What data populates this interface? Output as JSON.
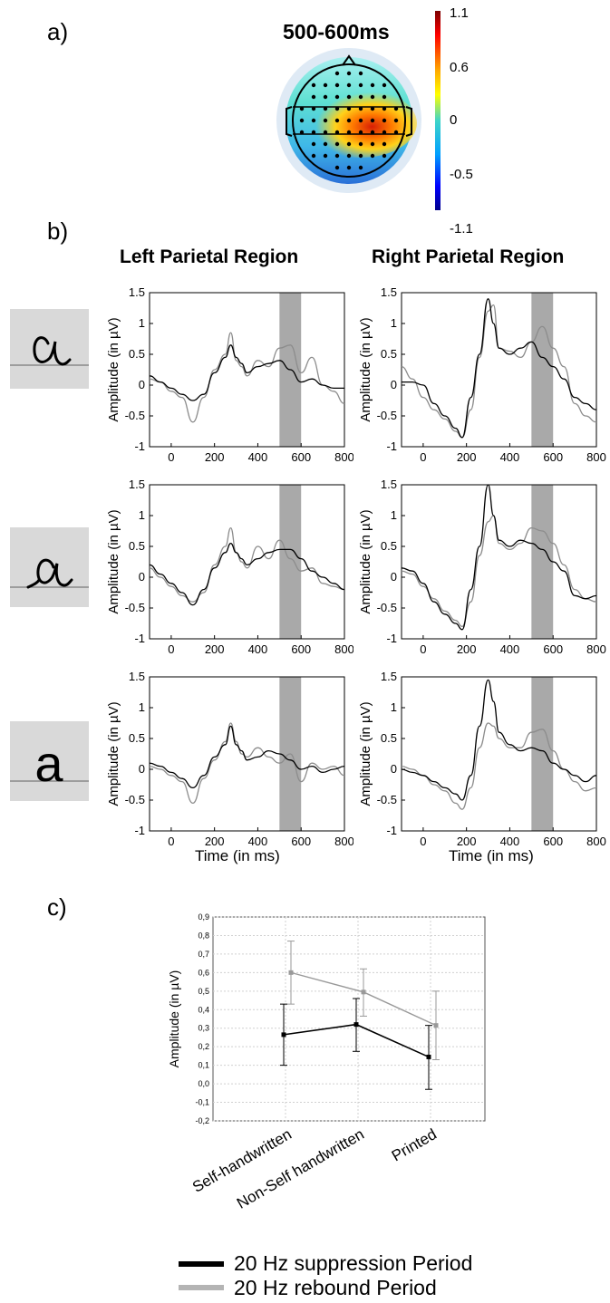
{
  "panel_labels": {
    "a": "a)",
    "b": "b)",
    "c": "c)"
  },
  "topomap": {
    "title": "500-600ms",
    "colorbar_ticks": [
      "1.1",
      "0.6",
      "0",
      "-0.5",
      "-1.1"
    ],
    "colors": {
      "high": "#8b0000",
      "zero": "#3fd5c8",
      "low": "#00008b"
    }
  },
  "region_titles": [
    "Left Parietal Region",
    "Right Parietal Region"
  ],
  "letters": [
    "self-handwritten letter a",
    "non-self handwritten letter a",
    "printed letter a"
  ],
  "erp_axis": {
    "ylabel": "Amplitude (in µV)",
    "xlabel": "Time (in ms)",
    "yticks": [
      "1.5",
      "1",
      "0.5",
      "0",
      "-0.5",
      "-1"
    ],
    "xticks": [
      "0",
      "200",
      "400",
      "600",
      "800"
    ]
  },
  "chart_data": [
    {
      "type": "line",
      "panel": "b",
      "row": 1,
      "region": "Left Parietal Region",
      "xlim": [
        -100,
        800
      ],
      "ylim": [
        -1,
        1.5
      ],
      "shaded_x": [
        500,
        600
      ],
      "series": [
        {
          "color": "#000000",
          "x": [
            -100,
            -50,
            0,
            50,
            100,
            150,
            200,
            250,
            275,
            300,
            325,
            350,
            400,
            450,
            500,
            550,
            600,
            650,
            700,
            750,
            800
          ],
          "y": [
            0.15,
            0.05,
            -0.05,
            -0.15,
            -0.25,
            -0.15,
            0.2,
            0.45,
            0.65,
            0.45,
            0.35,
            0.2,
            0.3,
            0.35,
            0.4,
            0.25,
            0.05,
            0.1,
            0,
            -0.05,
            -0.05
          ]
        },
        {
          "color": "#8c8c8c",
          "x": [
            -100,
            -50,
            0,
            50,
            100,
            150,
            200,
            250,
            275,
            300,
            325,
            350,
            400,
            450,
            500,
            550,
            600,
            650,
            700,
            750,
            800
          ],
          "y": [
            0.1,
            0.05,
            -0.1,
            -0.2,
            -0.6,
            -0.2,
            0.25,
            0.5,
            0.85,
            0.4,
            0.3,
            0.15,
            0.4,
            0.3,
            0.6,
            0.65,
            0.2,
            0.45,
            0,
            -0.1,
            -0.3
          ]
        }
      ]
    },
    {
      "type": "line",
      "panel": "b",
      "row": 1,
      "region": "Right Parietal Region",
      "xlim": [
        -100,
        800
      ],
      "ylim": [
        -1,
        1.5
      ],
      "shaded_x": [
        500,
        600
      ],
      "series": [
        {
          "color": "#000000",
          "x": [
            -100,
            -50,
            0,
            50,
            100,
            150,
            180,
            220,
            260,
            300,
            325,
            350,
            400,
            450,
            500,
            550,
            600,
            650,
            700,
            750,
            800
          ],
          "y": [
            0.05,
            0.05,
            0,
            -0.3,
            -0.5,
            -0.7,
            -0.85,
            -0.2,
            0.5,
            1.4,
            1.0,
            0.6,
            0.5,
            0.6,
            0.7,
            0.45,
            0.3,
            0.1,
            -0.2,
            -0.3,
            -0.4
          ]
        },
        {
          "color": "#8c8c8c",
          "x": [
            -100,
            -50,
            0,
            50,
            100,
            150,
            180,
            220,
            260,
            300,
            325,
            350,
            400,
            450,
            500,
            550,
            600,
            650,
            700,
            750,
            800
          ],
          "y": [
            0.3,
            0.1,
            -0.2,
            -0.4,
            -0.55,
            -0.75,
            -0.85,
            -0.4,
            0.45,
            1.2,
            1.3,
            0.6,
            0.55,
            0.45,
            0.7,
            0.95,
            0.6,
            0.3,
            -0.3,
            -0.5,
            -0.6
          ]
        }
      ]
    },
    {
      "type": "line",
      "panel": "b",
      "row": 2,
      "region": "Left Parietal Region",
      "xlim": [
        -100,
        800
      ],
      "ylim": [
        -1,
        1.5
      ],
      "shaded_x": [
        500,
        600
      ],
      "series": [
        {
          "color": "#000000",
          "x": [
            -100,
            -50,
            0,
            50,
            100,
            150,
            200,
            250,
            275,
            300,
            325,
            350,
            400,
            450,
            500,
            550,
            600,
            650,
            700,
            750,
            800
          ],
          "y": [
            0.2,
            0.05,
            -0.1,
            -0.25,
            -0.45,
            -0.2,
            0.15,
            0.4,
            0.55,
            0.4,
            0.3,
            0.2,
            0.3,
            0.4,
            0.45,
            0.45,
            0.3,
            0.1,
            0,
            -0.1,
            -0.2
          ]
        },
        {
          "color": "#8c8c8c",
          "x": [
            -100,
            -50,
            0,
            50,
            100,
            150,
            200,
            250,
            275,
            300,
            325,
            350,
            400,
            450,
            500,
            550,
            600,
            650,
            700,
            750,
            800
          ],
          "y": [
            0.15,
            0,
            -0.15,
            -0.3,
            -0.4,
            -0.25,
            0.2,
            0.5,
            0.8,
            0.4,
            0.25,
            0.15,
            0.5,
            0.3,
            0.6,
            0.3,
            0.1,
            0.15,
            -0.1,
            -0.15,
            -0.2
          ]
        }
      ]
    },
    {
      "type": "line",
      "panel": "b",
      "row": 2,
      "region": "Right Parietal Region",
      "xlim": [
        -100,
        800
      ],
      "ylim": [
        -1,
        1.5
      ],
      "shaded_x": [
        500,
        600
      ],
      "series": [
        {
          "color": "#000000",
          "x": [
            -100,
            -50,
            0,
            50,
            100,
            150,
            180,
            220,
            260,
            300,
            325,
            350,
            400,
            450,
            500,
            550,
            600,
            650,
            700,
            750,
            800
          ],
          "y": [
            0.15,
            0.1,
            -0.1,
            -0.4,
            -0.6,
            -0.75,
            -0.85,
            -0.2,
            0.5,
            1.5,
            1.0,
            0.6,
            0.5,
            0.6,
            0.55,
            0.45,
            0.25,
            0.1,
            -0.3,
            -0.35,
            -0.3
          ]
        },
        {
          "color": "#8c8c8c",
          "x": [
            -100,
            -50,
            0,
            50,
            100,
            150,
            180,
            220,
            260,
            300,
            325,
            350,
            400,
            450,
            500,
            550,
            600,
            650,
            700,
            750,
            800
          ],
          "y": [
            0.1,
            0.05,
            -0.15,
            -0.35,
            -0.55,
            -0.7,
            -0.8,
            -0.4,
            0.35,
            0.9,
            1.0,
            0.55,
            0.45,
            0.55,
            0.8,
            0.75,
            0.55,
            0.2,
            -0.2,
            -0.35,
            -0.4
          ]
        }
      ]
    },
    {
      "type": "line",
      "panel": "b",
      "row": 3,
      "region": "Left Parietal Region",
      "xlim": [
        -100,
        800
      ],
      "ylim": [
        -1,
        1.5
      ],
      "shaded_x": [
        500,
        600
      ],
      "series": [
        {
          "color": "#000000",
          "x": [
            -100,
            -50,
            0,
            50,
            100,
            150,
            200,
            250,
            275,
            300,
            325,
            350,
            400,
            450,
            500,
            550,
            600,
            650,
            700,
            750,
            800
          ],
          "y": [
            0.1,
            0.05,
            -0.05,
            -0.15,
            -0.3,
            -0.1,
            0.2,
            0.4,
            0.7,
            0.4,
            0.3,
            0.15,
            0.2,
            0.3,
            0.25,
            0.15,
            0.0,
            0.05,
            -0.05,
            0.0,
            0.05
          ]
        },
        {
          "color": "#8c8c8c",
          "x": [
            -100,
            -50,
            0,
            50,
            100,
            150,
            200,
            250,
            275,
            300,
            325,
            350,
            400,
            450,
            500,
            550,
            600,
            650,
            700,
            750,
            800
          ],
          "y": [
            0.05,
            0.0,
            -0.1,
            -0.2,
            -0.55,
            -0.15,
            0.15,
            0.45,
            0.75,
            0.45,
            0.25,
            0.2,
            0.35,
            0.2,
            0.1,
            0.25,
            -0.2,
            0.1,
            0.0,
            0.05,
            -0.1
          ]
        }
      ]
    },
    {
      "type": "line",
      "panel": "b",
      "row": 3,
      "region": "Right Parietal Region",
      "xlim": [
        -100,
        800
      ],
      "ylim": [
        -1,
        1.5
      ],
      "shaded_x": [
        500,
        600
      ],
      "series": [
        {
          "color": "#000000",
          "x": [
            -100,
            -50,
            0,
            50,
            100,
            150,
            180,
            220,
            260,
            300,
            325,
            350,
            400,
            450,
            500,
            550,
            600,
            650,
            700,
            750,
            800
          ],
          "y": [
            0.0,
            -0.05,
            -0.1,
            -0.2,
            -0.3,
            -0.4,
            -0.5,
            -0.1,
            0.7,
            1.45,
            1.1,
            0.6,
            0.4,
            0.3,
            0.35,
            0.3,
            0.1,
            0.0,
            -0.1,
            -0.2,
            -0.1
          ]
        },
        {
          "color": "#8c8c8c",
          "x": [
            -100,
            -50,
            0,
            50,
            100,
            150,
            180,
            220,
            260,
            300,
            325,
            350,
            400,
            450,
            500,
            550,
            600,
            650,
            700,
            750,
            800
          ],
          "y": [
            0.05,
            0.0,
            -0.1,
            -0.25,
            -0.35,
            -0.55,
            -0.65,
            -0.3,
            0.35,
            0.75,
            0.7,
            0.5,
            0.35,
            0.35,
            0.6,
            0.65,
            0.3,
            0.0,
            -0.2,
            -0.35,
            -0.3
          ]
        }
      ]
    },
    {
      "type": "line",
      "panel": "c",
      "categories": [
        "Self-handwritten",
        "Non-Self handwritten",
        "Printed"
      ],
      "ylabel": "Amplitude (in µV)",
      "ylim": [
        -0.2,
        0.9
      ],
      "yticks": [
        "0,9",
        "0,8",
        "0,7",
        "0,6",
        "0,5",
        "0,4",
        "0,3",
        "0,2",
        "0,1",
        "0,0",
        "-0,1",
        "-0,2"
      ],
      "grid": true,
      "legend_position": "bottom",
      "series": [
        {
          "name": "20 Hz suppression Period",
          "color": "#000000",
          "values": [
            0.265,
            0.32,
            0.145
          ],
          "err_low": [
            0.1,
            0.175,
            -0.03
          ],
          "err_high": [
            0.43,
            0.46,
            0.315
          ]
        },
        {
          "name": "20 Hz rebound Period",
          "color": "#999999",
          "values": [
            0.6,
            0.495,
            0.315
          ],
          "err_low": [
            0.43,
            0.365,
            0.13
          ],
          "err_high": [
            0.77,
            0.62,
            0.5
          ]
        }
      ]
    }
  ]
}
